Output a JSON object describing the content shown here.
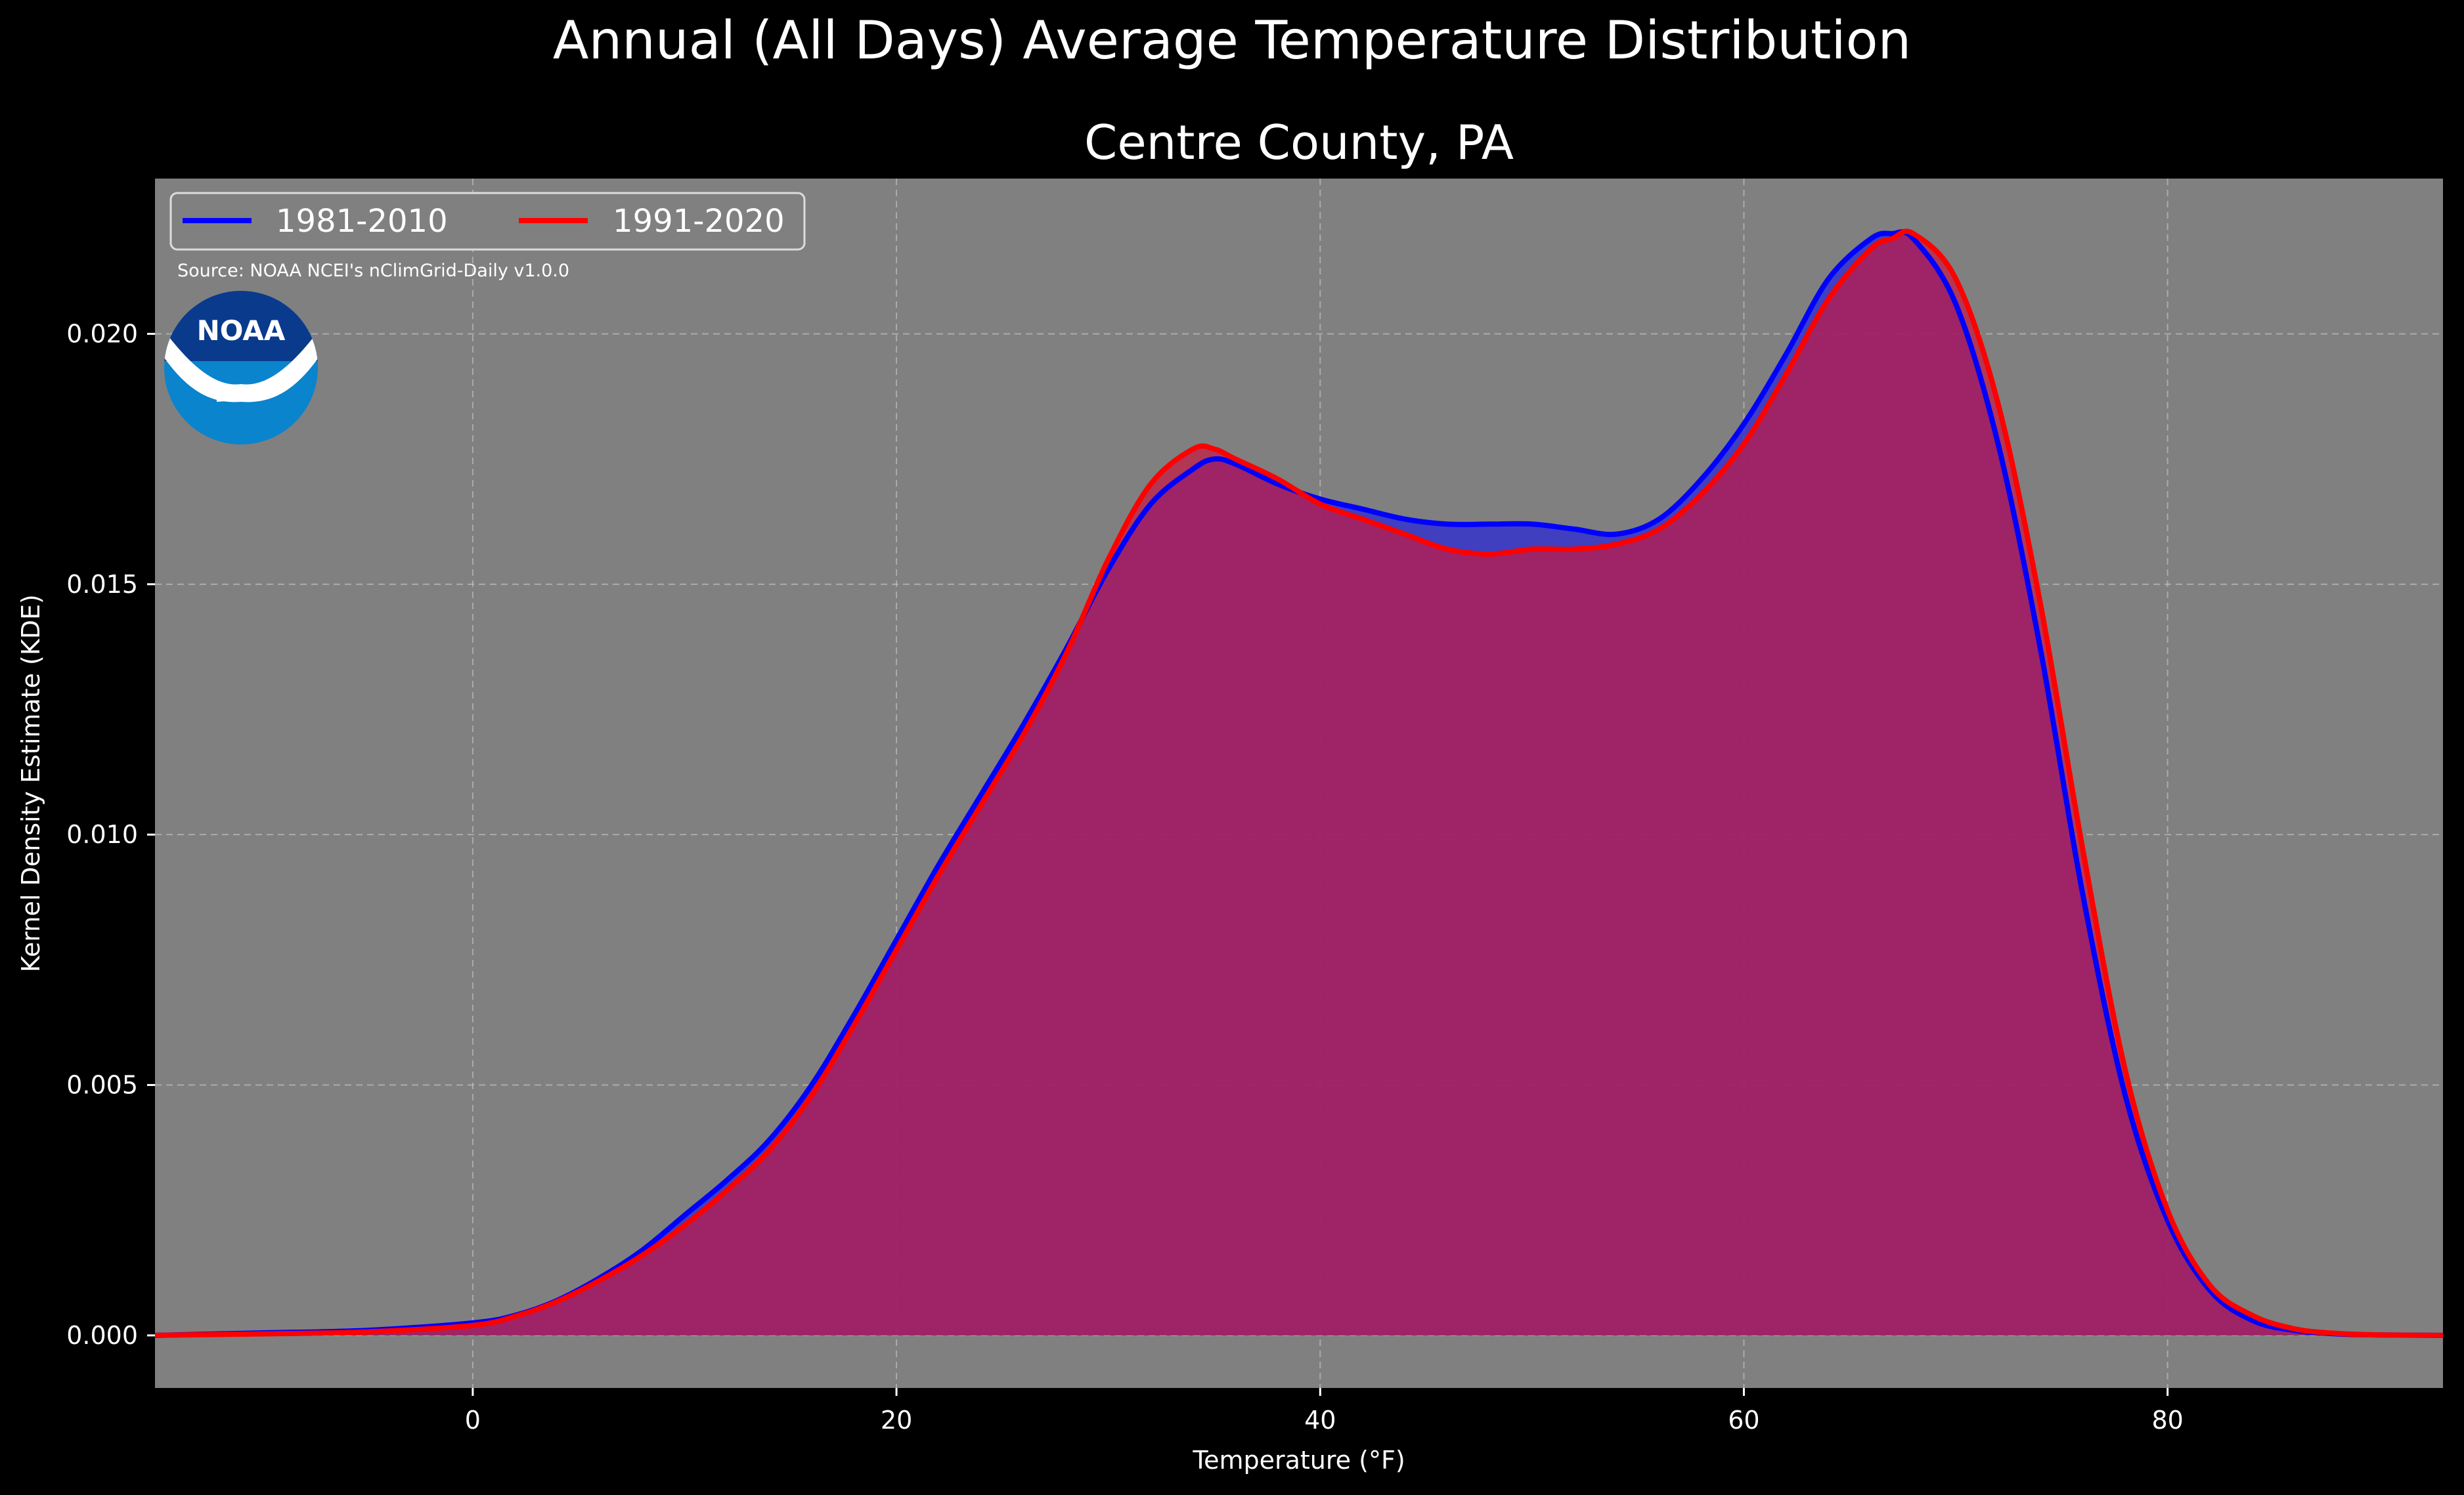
{
  "chart_data": {
    "type": "area",
    "suptitle": "Annual (All Days) Average Temperature Distribution",
    "title": "Centre County, PA",
    "xlabel": "Temperature (°F)",
    "ylabel": "Kernel Density Estimate (KDE)",
    "source_note": "Source: NOAA NCEI's nClimGrid-Daily v1.0.0",
    "logo_text": "NOAA",
    "xlim": [
      -15,
      93
    ],
    "ylim": [
      -0.00105,
      0.0231
    ],
    "x_ticks": [
      0,
      20,
      40,
      60,
      80
    ],
    "x_tick_labels": [
      "0",
      "20",
      "40",
      "60",
      "80"
    ],
    "y_ticks": [
      0.0,
      0.005,
      0.01,
      0.015,
      0.02
    ],
    "y_tick_labels": [
      "0.000",
      "0.005",
      "0.010",
      "0.015",
      "0.020"
    ],
    "grid": true,
    "legend_placement": "top-left",
    "colors": {
      "background": "#000000",
      "plot_bg": "#808080",
      "grid": "#c8c8c8",
      "series_1981": "#0000ff",
      "series_1991": "#ff0000",
      "fill_1981": "#2a2ad6",
      "fill_1991": "#c41a44",
      "logo_dark": "#0a3a8c",
      "logo_light": "#0a84cc"
    },
    "series": [
      {
        "name": "1981-2010",
        "color": "#0000ff",
        "x": [
          -15,
          -10,
          -5,
          0,
          2,
          4,
          6,
          8,
          10,
          12,
          14,
          16,
          18,
          20,
          22,
          24,
          26,
          28,
          30,
          32,
          34,
          35,
          36,
          38,
          40,
          42,
          44,
          46,
          48,
          50,
          52,
          54,
          56,
          58,
          60,
          62,
          64,
          66,
          67,
          68,
          70,
          72,
          74,
          76,
          78,
          80,
          82,
          84,
          86,
          88,
          90,
          93
        ],
        "y": [
          0.0,
          5e-05,
          0.0001,
          0.00025,
          0.0004,
          0.0007,
          0.00115,
          0.0017,
          0.0024,
          0.0031,
          0.0039,
          0.005,
          0.0064,
          0.0079,
          0.0094,
          0.0108,
          0.0122,
          0.0137,
          0.0153,
          0.0166,
          0.0173,
          0.0175,
          0.0174,
          0.017,
          0.0167,
          0.0165,
          0.0163,
          0.0162,
          0.0162,
          0.0162,
          0.0161,
          0.016,
          0.0163,
          0.0171,
          0.0182,
          0.0196,
          0.0211,
          0.0219,
          0.022,
          0.0219,
          0.0206,
          0.0178,
          0.0137,
          0.0088,
          0.0048,
          0.0023,
          0.0009,
          0.0003,
          0.0001,
          3e-05,
          1e-05,
          0.0
        ]
      },
      {
        "name": "1991-2020",
        "color": "#ff0000",
        "x": [
          -15,
          -10,
          -5,
          0,
          2,
          4,
          6,
          8,
          10,
          12,
          14,
          16,
          18,
          20,
          22,
          24,
          26,
          28,
          30,
          32,
          34,
          35,
          36,
          38,
          40,
          42,
          44,
          46,
          48,
          50,
          52,
          54,
          56,
          58,
          60,
          62,
          64,
          66,
          67,
          68,
          70,
          72,
          74,
          76,
          78,
          80,
          82,
          84,
          86,
          88,
          90,
          93
        ],
        "y": [
          0.0,
          3e-05,
          7e-05,
          0.0002,
          0.00038,
          0.00068,
          0.0011,
          0.0016,
          0.0022,
          0.0029,
          0.0037,
          0.0048,
          0.0062,
          0.0077,
          0.0092,
          0.0106,
          0.012,
          0.0136,
          0.0155,
          0.017,
          0.0177,
          0.0177,
          0.0175,
          0.0171,
          0.0166,
          0.0163,
          0.016,
          0.0157,
          0.0156,
          0.0157,
          0.0157,
          0.0158,
          0.0161,
          0.0168,
          0.0178,
          0.0192,
          0.0207,
          0.0217,
          0.0219,
          0.022,
          0.0211,
          0.0186,
          0.0146,
          0.0097,
          0.0053,
          0.0025,
          0.001,
          0.0004,
          0.00013,
          4e-05,
          1e-05,
          0.0
        ]
      }
    ]
  }
}
